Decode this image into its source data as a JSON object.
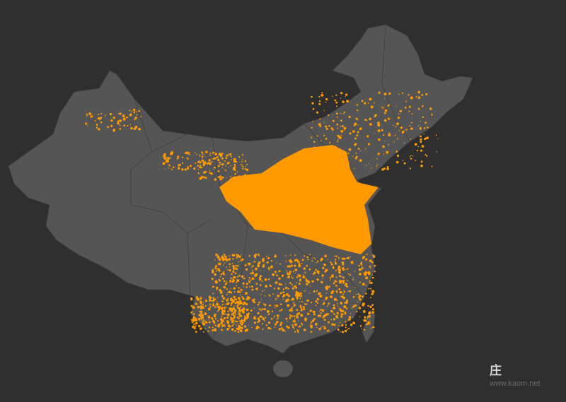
{
  "map": {
    "surname": "庄",
    "watermark": "www.kaom.net",
    "colors": {
      "background": "#2f2f2f",
      "land": "#555555",
      "border": "#3f3f3f",
      "density": "#ff9900"
    }
  }
}
